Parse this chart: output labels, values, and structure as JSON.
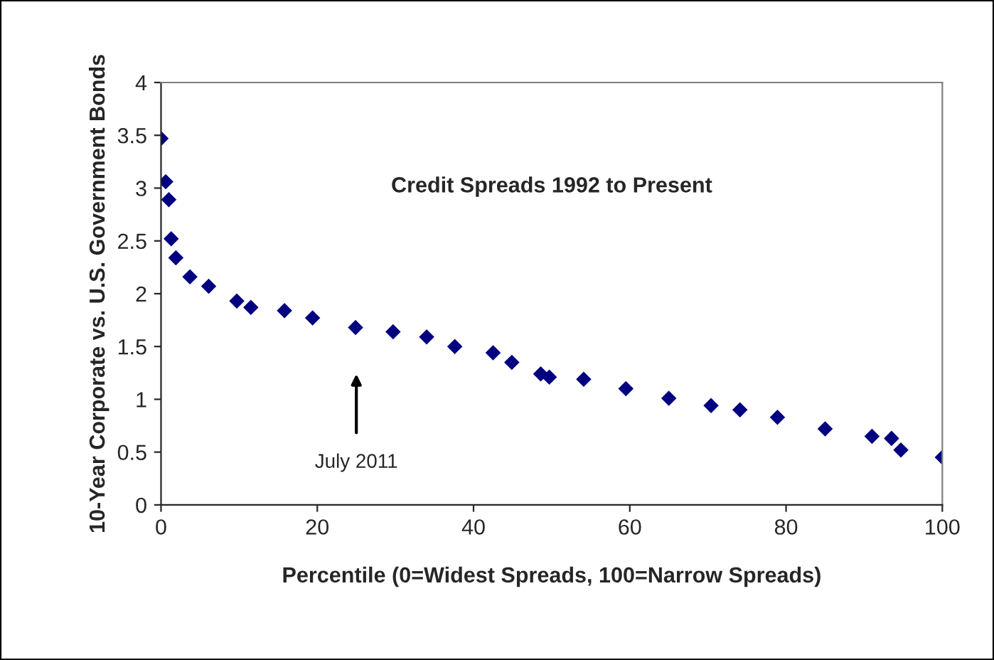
{
  "chart_data": {
    "type": "scatter",
    "title": "Credit Spreads 1992 to Present",
    "xlabel": "Percentile (0=Widest Spreads, 100=Narrow Spreads)",
    "ylabel": "10-Year Corporate vs. U.S. Government Bonds",
    "x": [
      0,
      0.6,
      1.0,
      1.3,
      1.9,
      3.7,
      6.1,
      9.7,
      11.5,
      15.8,
      19.4,
      24.9,
      29.7,
      34.0,
      37.6,
      42.5,
      44.9,
      48.6,
      49.7,
      54.1,
      59.5,
      65.0,
      70.4,
      74.1,
      78.9,
      85.0,
      91.0,
      93.5,
      94.7,
      100
    ],
    "series": [
      {
        "color": "#000080",
        "values": [
          3.47,
          3.06,
          2.89,
          2.52,
          2.34,
          2.16,
          2.07,
          1.93,
          1.87,
          1.84,
          1.77,
          1.68,
          1.64,
          1.59,
          1.5,
          1.44,
          1.35,
          1.24,
          1.21,
          1.19,
          1.1,
          1.01,
          0.94,
          0.9,
          0.83,
          0.72,
          0.65,
          0.63,
          0.52,
          0.45
        ]
      }
    ],
    "marker": "diamond",
    "grid": false,
    "legend": false,
    "xlim": [
      0,
      100
    ],
    "xticks": [
      0,
      20,
      40,
      60,
      80,
      100
    ],
    "ylim": [
      0,
      4
    ],
    "yticks": [
      0,
      0.5,
      1,
      1.5,
      2,
      2.5,
      3,
      3.5,
      4
    ],
    "annotations": [
      "July 2011"
    ]
  }
}
